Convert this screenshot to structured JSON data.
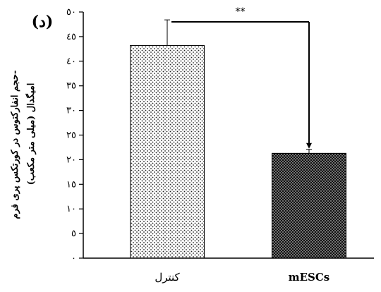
{
  "chart_data": {
    "type": "bar",
    "panel_label": "(د)",
    "ylabel_lines": [
      "حجم انفارکتوس در کورتکس پری فرم-",
      "امیگدال (میلی متر مکعب)"
    ],
    "categories": [
      "کنترل",
      "mESCs"
    ],
    "values": [
      43.2,
      21.3
    ],
    "errors": [
      5.2,
      0.8
    ],
    "ylim": [
      0,
      50
    ],
    "yticks": [
      0,
      5,
      10,
      15,
      20,
      25,
      30,
      35,
      40,
      45,
      50
    ],
    "ytick_labels": [
      "٠",
      "٥",
      "١٠",
      "١٥",
      "٢٠",
      "٢٥",
      "٣٠",
      "٣٥",
      "٤٠",
      "٤٥",
      "٥٠"
    ],
    "significance": "**",
    "fill_patterns": [
      "light-dots",
      "dense-dark-dots"
    ],
    "grid": false
  }
}
